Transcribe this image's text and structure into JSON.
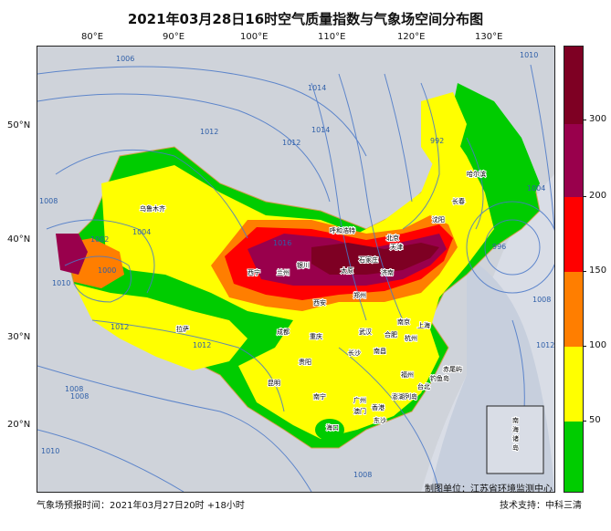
{
  "title": "2021年03月28日16时空气质量指数与气象场空间分布图",
  "footer_forecast_time": "气象场预报时间：2021年03月27日20时 +18小时",
  "footer_maker": "制图单位：江苏省环境监测中心",
  "footer_support": "技术支持：中科三清",
  "lon_labels": [
    "80°E",
    "90°E",
    "100°E",
    "110°E",
    "120°E",
    "130°E"
  ],
  "lat_labels": [
    "50°N",
    "40°N",
    "30°N",
    "20°N"
  ],
  "colorbar": {
    "labels": [
      "50",
      "100",
      "150",
      "200",
      "300"
    ],
    "colors": [
      "#00cc00",
      "#ffff00",
      "#ff7e00",
      "#ff0000",
      "#99004c",
      "#7e0023"
    ]
  },
  "isobar_labels": [
    "1006",
    "1012",
    "1012",
    "1014",
    "1014",
    "1008",
    "1002",
    "1004",
    "1000",
    "1012",
    "1016",
    "1012",
    "1008",
    "1010",
    "992",
    "996",
    "1004",
    "1008",
    "1012",
    "1008",
    "1010",
    "1010",
    "1008"
  ],
  "cities": [
    "乌鲁木齐",
    "呼和浩特",
    "北京",
    "天津",
    "石家庄",
    "太原",
    "济南",
    "郑州",
    "西安",
    "银川",
    "西宁",
    "兰州",
    "拉萨",
    "成都",
    "重庆",
    "贵阳",
    "昆明",
    "南宁",
    "海口",
    "广州",
    "香港",
    "澳门",
    "长沙",
    "南昌",
    "武汉",
    "合肥",
    "南京",
    "上海",
    "杭州",
    "福州",
    "台北",
    "沈阳",
    "长春",
    "哈尔滨",
    "东沙",
    "赤尾屿",
    "钓鱼岛",
    "南海诸岛",
    "澎湖列岛"
  ],
  "ocean_labels": [
    "南",
    "海",
    "诸",
    "岛"
  ]
}
